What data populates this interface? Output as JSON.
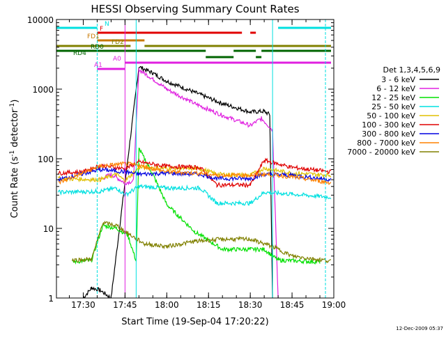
{
  "chart_data": {
    "type": "line",
    "title": "HESSI Observing Summary Count Rates",
    "xlabel": "Start Time (19-Sep-04 17:20:22)",
    "ylabel": "Count Rate (s",
    "ylabel_sup1": "-1",
    "ylabel_mid": " detector",
    "ylabel_sup2": "-1",
    "ylabel_end": ")",
    "footer": "12-Dec-2009 05:37",
    "yscale": "log",
    "ylim": [
      1,
      10000
    ],
    "xlim": [
      "17:20:22",
      "19:00:00"
    ],
    "x_ticks": [
      "17:30",
      "17:45",
      "18:00",
      "18:15",
      "18:30",
      "18:45",
      "19:00"
    ],
    "y_ticks": [
      "1",
      "10",
      "100",
      "1000",
      "10000"
    ],
    "legend_title": "Det 1,3,4,5,6,9",
    "legend_position": "right",
    "series": [
      {
        "name": "3 - 6 keV",
        "color": "#000000",
        "points": [
          [
            "17:30",
            1.0
          ],
          [
            "17:33",
            1.4
          ],
          [
            "17:36",
            1.3
          ],
          [
            "17:40",
            1.0
          ],
          [
            "17:50",
            2100
          ],
          [
            "17:55",
            1700
          ],
          [
            "18:00",
            1300
          ],
          [
            "18:10",
            900
          ],
          [
            "18:20",
            620
          ],
          [
            "18:30",
            470
          ],
          [
            "18:35",
            480
          ],
          [
            "18:37",
            430
          ],
          [
            "18:38",
            1.0
          ]
        ]
      },
      {
        "name": "6 - 12 keV",
        "color": "#e020e0",
        "points": [
          [
            "17:36",
            50
          ],
          [
            "17:40",
            60
          ],
          [
            "17:45",
            45
          ],
          [
            "17:48",
            48
          ],
          [
            "17:50",
            1900
          ],
          [
            "17:55",
            1400
          ],
          [
            "18:00",
            1000
          ],
          [
            "18:10",
            620
          ],
          [
            "18:20",
            420
          ],
          [
            "18:30",
            300
          ],
          [
            "18:34",
            380
          ],
          [
            "18:38",
            260
          ],
          [
            "18:40",
            1.0
          ]
        ]
      },
      {
        "name": "12 - 25 keV",
        "color": "#00e000",
        "points": [
          [
            "17:26",
            3.3
          ],
          [
            "17:33",
            3.5
          ],
          [
            "17:37",
            11
          ],
          [
            "17:42",
            10
          ],
          [
            "17:46",
            8
          ],
          [
            "17:49",
            3.4
          ],
          [
            "17:50",
            140
          ],
          [
            "17:55",
            60
          ],
          [
            "18:00",
            22
          ],
          [
            "18:10",
            9
          ],
          [
            "18:20",
            5
          ],
          [
            "18:30",
            5
          ],
          [
            "18:35",
            5
          ],
          [
            "18:40",
            3.5
          ],
          [
            "18:55",
            3.3
          ]
        ]
      },
      {
        "name": "25 - 50 keV",
        "color": "#00e0e0",
        "points": [
          [
            "17:21",
            33
          ],
          [
            "17:36",
            34
          ],
          [
            "17:42",
            38
          ],
          [
            "17:45",
            30
          ],
          [
            "17:50",
            40
          ],
          [
            "18:00",
            38
          ],
          [
            "18:12",
            38
          ],
          [
            "18:18",
            23
          ],
          [
            "18:30",
            23
          ],
          [
            "18:35",
            33
          ],
          [
            "18:45",
            31
          ],
          [
            "18:59",
            28
          ]
        ]
      },
      {
        "name": "50 - 100 keV",
        "color": "#e0c000",
        "points": [
          [
            "17:21",
            52
          ],
          [
            "17:36",
            50
          ],
          [
            "17:42",
            60
          ],
          [
            "17:45",
            48
          ],
          [
            "17:50",
            75
          ],
          [
            "18:00",
            73
          ],
          [
            "18:12",
            72
          ],
          [
            "18:18",
            60
          ],
          [
            "18:30",
            58
          ],
          [
            "18:35",
            73
          ],
          [
            "18:45",
            62
          ],
          [
            "18:59",
            58
          ]
        ]
      },
      {
        "name": "100 - 300 keV",
        "color": "#e00000",
        "points": [
          [
            "17:21",
            62
          ],
          [
            "17:30",
            65
          ],
          [
            "17:36",
            80
          ],
          [
            "17:45",
            72
          ],
          [
            "17:50",
            90
          ],
          [
            "18:00",
            78
          ],
          [
            "18:12",
            75
          ],
          [
            "18:18",
            42
          ],
          [
            "18:30",
            42
          ],
          [
            "18:35",
            95
          ],
          [
            "18:45",
            75
          ],
          [
            "18:59",
            65
          ]
        ]
      },
      {
        "name": "300 - 800 keV",
        "color": "#0000e0",
        "points": [
          [
            "17:21",
            50
          ],
          [
            "17:36",
            70
          ],
          [
            "17:45",
            65
          ],
          [
            "17:50",
            60
          ],
          [
            "18:00",
            62
          ],
          [
            "18:12",
            60
          ],
          [
            "18:18",
            52
          ],
          [
            "18:30",
            52
          ],
          [
            "18:35",
            60
          ],
          [
            "18:45",
            58
          ],
          [
            "18:59",
            50
          ]
        ]
      },
      {
        "name": "800 - 7000 keV",
        "color": "#ff8000",
        "points": [
          [
            "17:21",
            45
          ],
          [
            "17:36",
            78
          ],
          [
            "17:45",
            85
          ],
          [
            "17:50",
            80
          ],
          [
            "18:00",
            65
          ],
          [
            "18:12",
            62
          ],
          [
            "18:18",
            58
          ],
          [
            "18:30",
            58
          ],
          [
            "18:35",
            60
          ],
          [
            "18:45",
            55
          ],
          [
            "18:59",
            45
          ]
        ]
      },
      {
        "name": "7000 - 20000 keV",
        "color": "#808000",
        "points": [
          [
            "17:26",
            3.5
          ],
          [
            "17:33",
            3.6
          ],
          [
            "17:37",
            12
          ],
          [
            "17:42",
            11
          ],
          [
            "17:47",
            8
          ],
          [
            "17:52",
            6
          ],
          [
            "18:00",
            5.5
          ],
          [
            "18:10",
            6.5
          ],
          [
            "18:20",
            7
          ],
          [
            "18:30",
            7
          ],
          [
            "18:38",
            5.5
          ],
          [
            "18:45",
            4
          ],
          [
            "18:59",
            3.4
          ]
        ]
      }
    ],
    "flags": [
      {
        "name": "N",
        "color": "#00e0e0",
        "segments": [
          [
            "17:20:22",
            "17:35"
          ],
          [
            "18:40",
            "18:59"
          ]
        ]
      },
      {
        "name": "F",
        "color": "#e00000",
        "segments": [
          [
            "17:35",
            "18:27"
          ],
          [
            "18:30",
            "18:32"
          ]
        ]
      },
      {
        "name": "FD1",
        "color": "#c87800",
        "segments": [
          [
            "17:35",
            "17:52"
          ]
        ]
      },
      {
        "name": "FD2",
        "color": "#808000",
        "segments": [
          [
            "17:20:22",
            "17:47"
          ],
          [
            "17:52",
            "18:59"
          ]
        ]
      },
      {
        "name": "RD0",
        "color": "#006400",
        "segments": [
          [
            "17:20:22",
            "18:14"
          ],
          [
            "18:24",
            "18:32"
          ],
          [
            "18:34",
            "18:59"
          ]
        ]
      },
      {
        "name": "RD4",
        "color": "#006400",
        "segments": [
          [
            "18:14",
            "18:24"
          ],
          [
            "18:32",
            "18:34"
          ]
        ]
      },
      {
        "name": "A0",
        "color": "#e020e0",
        "segments": [
          [
            "17:45",
            "18:59"
          ]
        ]
      },
      {
        "name": "A1",
        "color": "#e020e0",
        "segments": [
          [
            "17:35",
            "17:45"
          ]
        ]
      }
    ]
  }
}
